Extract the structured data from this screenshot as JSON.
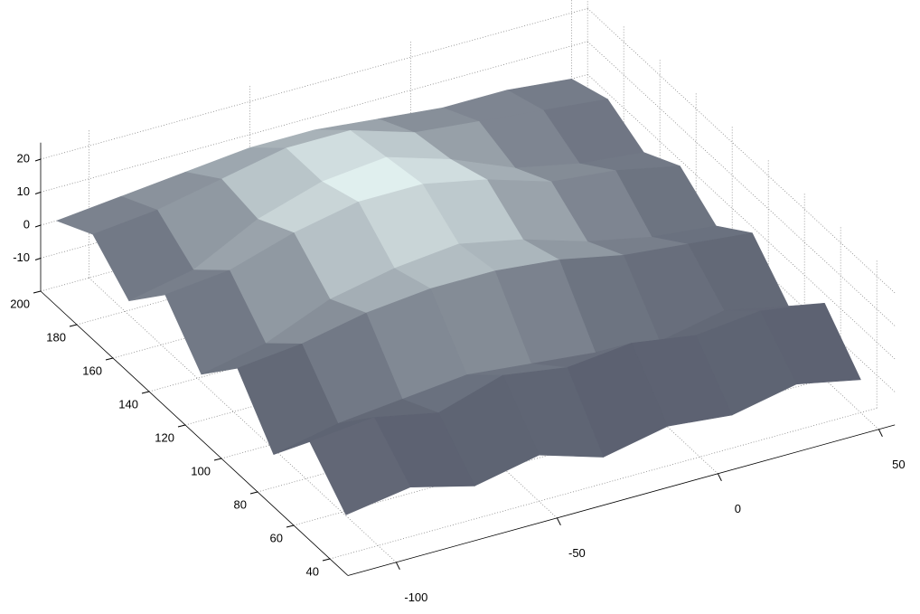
{
  "chart_data": {
    "type": "surface",
    "x": [
      -110,
      -90,
      -70,
      -50,
      -30,
      -10,
      10,
      30,
      50
    ],
    "y": [
      40,
      60,
      80,
      100,
      120,
      140,
      160,
      180,
      200
    ],
    "z": [
      [
        -8,
        -5,
        -10,
        -6,
        -12,
        -8,
        -10,
        -6,
        -10
      ],
      [
        4,
        6,
        2,
        8,
        5,
        7,
        4,
        6,
        3
      ],
      [
        -10,
        -6,
        -4,
        -2,
        -4,
        -6,
        -8,
        -4,
        -8
      ],
      [
        6,
        8,
        12,
        14,
        14,
        12,
        8,
        6,
        4
      ],
      [
        -6,
        -2,
        6,
        10,
        12,
        8,
        2,
        -2,
        -4
      ],
      [
        8,
        10,
        16,
        20,
        20,
        16,
        10,
        8,
        4
      ],
      [
        -4,
        0,
        10,
        16,
        18,
        12,
        4,
        0,
        -2
      ],
      [
        6,
        8,
        12,
        16,
        16,
        10,
        8,
        6,
        4
      ],
      [
        0,
        2,
        4,
        6,
        6,
        4,
        2,
        2,
        0
      ]
    ],
    "xlim": [
      -115,
      55
    ],
    "ylim": [
      30,
      200
    ],
    "zlim": [
      -20,
      25
    ],
    "xticks": [
      -100,
      -50,
      0,
      50
    ],
    "yticks": [
      40,
      60,
      80,
      100,
      120,
      140,
      160,
      180,
      200
    ],
    "zticks": [
      -10,
      0,
      10,
      20
    ],
    "grid": true
  }
}
